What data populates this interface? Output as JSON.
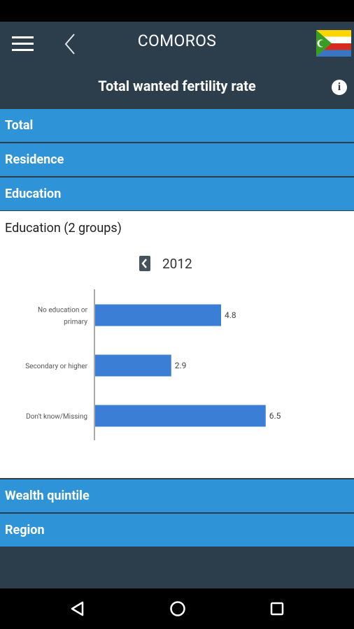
{
  "app_bar": {
    "country": "COMOROS",
    "indicator": "Total wanted fertility rate",
    "info_label": "i"
  },
  "sections": {
    "total": "Total",
    "residence": "Residence",
    "education": "Education",
    "wealth": "Wealth quintile",
    "region": "Region"
  },
  "content": {
    "group_title": "Education (2 groups)",
    "year": "2012"
  },
  "chart_data": {
    "type": "bar",
    "orientation": "horizontal",
    "categories": [
      "No education or primary",
      "Secondary or higher",
      "Don't know/Missing"
    ],
    "category_lines": [
      [
        "No education or",
        "primary"
      ],
      [
        "Secondary or higher"
      ],
      [
        "Don't know/Missing"
      ]
    ],
    "values": [
      4.8,
      2.9,
      6.5
    ],
    "value_labels": [
      "4.8",
      "2.9",
      "6.5"
    ],
    "xlim": [
      0,
      8
    ],
    "bar_color": "#3a7fd5"
  },
  "colors": {
    "app_bar": "#2c3e4c",
    "section": "#2f93d7"
  }
}
